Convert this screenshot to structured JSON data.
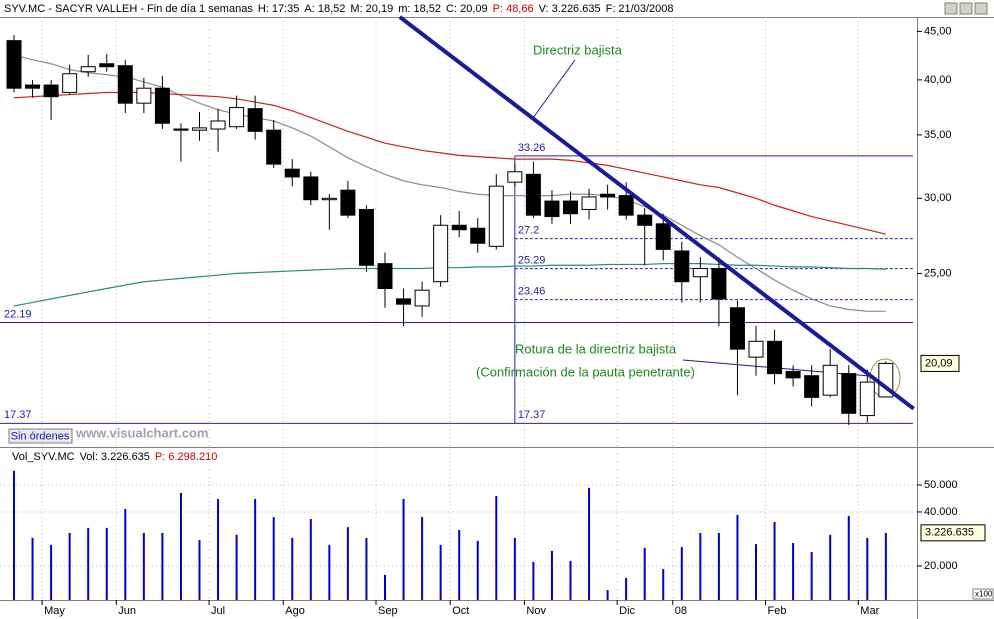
{
  "header": {
    "items": [
      {
        "text": "SYV.MC - SACYR VALLEH - Fin de día 1 semanas",
        "color": "#000000"
      },
      {
        "text": "H: 17:35",
        "color": "#000000"
      },
      {
        "text": "A: 18,52",
        "color": "#000000"
      },
      {
        "text": "M: 20,19",
        "color": "#000000"
      },
      {
        "text": "m: 18,52",
        "color": "#000000"
      },
      {
        "text": "C: 20,09",
        "color": "#000000"
      },
      {
        "text": "P: 48,66",
        "color": "#d00000"
      },
      {
        "text": "V: 3.226.635",
        "color": "#000000"
      },
      {
        "text": "F: 21/03/2008",
        "color": "#000000"
      }
    ]
  },
  "volume_header": {
    "items": [
      {
        "text": "Vol_SYV.MC",
        "color": "#000000"
      },
      {
        "text": "Vol: 3.226.635",
        "color": "#000000"
      },
      {
        "text": "P: 6.298.210",
        "color": "#d00000"
      }
    ]
  },
  "button": "Sin órdenes",
  "watermark": "www.visualchart.com",
  "annotations": [
    "Directriz bajista",
    "Rotura de la directriz bajista",
    "(Confirmación de la pauta penetrante)"
  ],
  "chart_data": [
    {
      "type": "candlestick",
      "log_scale": true,
      "up_color": "#ffffff",
      "down_color": "#000000",
      "open": [
        44.0,
        39.5,
        39.5,
        38.8,
        40.8,
        41.6,
        41.4,
        37.8,
        39.2,
        35.5,
        35.4,
        35.5,
        35.7,
        37.3,
        35.4,
        32.2,
        31.6,
        29.9,
        30.6,
        29.2,
        25.6,
        23.5,
        23.1,
        24.5,
        28.1,
        27.9,
        26.7,
        31.2,
        31.8,
        29.8,
        29.8,
        29.2,
        30.3,
        30.2,
        28.8,
        28.2,
        26.4,
        24.8,
        25.3,
        23.0,
        20.4,
        21.2,
        19.7,
        19.5,
        18.6,
        19.6,
        17.7,
        18.52
      ],
      "high": [
        44.6,
        40.0,
        40.0,
        41.5,
        42.5,
        42.6,
        42.0,
        40.2,
        40.4,
        36.0,
        37.0,
        37.3,
        38.5,
        38.5,
        36.3,
        33.0,
        32.0,
        30.3,
        31.3,
        29.5,
        26.3,
        24.1,
        24.5,
        28.8,
        29.1,
        28.6,
        31.8,
        32.6,
        32.8,
        30.6,
        30.5,
        30.7,
        31.0,
        31.2,
        29.3,
        28.9,
        27.0,
        26.0,
        26.0,
        23.4,
        22.0,
        21.8,
        20.0,
        20.0,
        20.8,
        20.0,
        19.8,
        20.19
      ],
      "low": [
        38.8,
        38.3,
        36.3,
        38.6,
        40.3,
        40.8,
        36.9,
        36.9,
        35.5,
        32.8,
        34.5,
        33.6,
        35.5,
        34.6,
        32.3,
        30.9,
        29.5,
        27.8,
        28.6,
        25.1,
        23.0,
        22.0,
        22.5,
        24.2,
        27.3,
        26.3,
        26.5,
        30.9,
        28.6,
        28.2,
        28.2,
        28.5,
        29.2,
        28.5,
        25.5,
        25.8,
        23.3,
        23.3,
        22.0,
        18.6,
        19.5,
        19.1,
        19.0,
        18.1,
        18.5,
        17.3,
        17.4,
        18.52
      ],
      "close": [
        39.2,
        39.2,
        38.4,
        40.6,
        41.3,
        41.3,
        37.8,
        39.2,
        36.0,
        35.4,
        35.6,
        36.2,
        37.4,
        35.3,
        32.6,
        31.6,
        29.9,
        30.0,
        28.8,
        25.5,
        24.1,
        23.2,
        24.0,
        28.1,
        27.8,
        26.9,
        30.9,
        32.0,
        28.8,
        28.7,
        28.9,
        30.1,
        30.1,
        28.8,
        28.1,
        26.5,
        24.5,
        25.3,
        23.5,
        20.8,
        21.2,
        19.6,
        19.4,
        18.5,
        20.0,
        17.8,
        19.2,
        20.09
      ],
      "last_label": "20,09",
      "overlays": [
        {
          "color": "#8c8c8c",
          "values": [
            42.5,
            42.0,
            41.6,
            41.0,
            40.7,
            40.5,
            40.3,
            39.8,
            39.3,
            38.5,
            37.8,
            37.2,
            36.8,
            36.5,
            36.2,
            35.6,
            34.9,
            34.0,
            33.1,
            32.4,
            31.8,
            31.3,
            31.0,
            30.8,
            30.5,
            30.3,
            30.2,
            30.2,
            30.2,
            30.2,
            30.3,
            30.3,
            30.2,
            29.9,
            29.4,
            28.8,
            28.1,
            27.4,
            26.8,
            26.0,
            25.3,
            24.6,
            24.0,
            23.5,
            23.1,
            22.9,
            22.8,
            22.8
          ]
        },
        {
          "color": "#cc2020",
          "values": [
            38.3,
            38.4,
            38.5,
            38.6,
            38.7,
            38.8,
            38.8,
            38.8,
            38.7,
            38.6,
            38.5,
            38.4,
            38.2,
            37.9,
            37.6,
            37.1,
            36.5,
            35.9,
            35.3,
            34.8,
            34.3,
            34.0,
            33.7,
            33.5,
            33.3,
            33.2,
            33.1,
            33.0,
            33.0,
            33.0,
            32.9,
            32.7,
            32.5,
            32.2,
            31.9,
            31.6,
            31.3,
            31.0,
            30.8,
            30.4,
            30.0,
            29.5,
            29.1,
            28.7,
            28.4,
            28.1,
            27.8,
            27.5
          ]
        },
        {
          "color": "#2a8a7a",
          "values": [
            23.1,
            23.3,
            23.5,
            23.7,
            23.9,
            24.1,
            24.3,
            24.5,
            24.6,
            24.7,
            24.8,
            24.9,
            25.0,
            25.05,
            25.1,
            25.15,
            25.2,
            25.25,
            25.3,
            25.3,
            25.3,
            25.3,
            25.3,
            25.35,
            25.35,
            25.4,
            25.4,
            25.45,
            25.45,
            25.5,
            25.5,
            25.5,
            25.55,
            25.55,
            25.55,
            25.6,
            25.6,
            25.6,
            25.55,
            25.5,
            25.5,
            25.45,
            25.4,
            25.4,
            25.35,
            25.3,
            25.3,
            25.25
          ]
        }
      ],
      "levels": [
        {
          "value": 33.26,
          "dashed": false,
          "full_width": false,
          "label_at": [
            "anchor"
          ]
        },
        {
          "value": 27.2,
          "dashed": true,
          "full_width": false,
          "label_at": [
            "anchor"
          ]
        },
        {
          "value": 25.29,
          "dashed": true,
          "full_width": false,
          "label_at": [
            "anchor"
          ]
        },
        {
          "value": 23.46,
          "dashed": true,
          "full_width": false,
          "label_at": [
            "anchor"
          ]
        },
        {
          "value": 22.19,
          "dashed": false,
          "full_width": true,
          "label_at": [
            "left"
          ]
        },
        {
          "value": 17.37,
          "dashed": false,
          "full_width": true,
          "label_at": [
            "left",
            "anchor"
          ]
        }
      ],
      "level_color": "#2020c0",
      "trendline": {
        "x": [
          20.8,
          48.5
        ],
        "values": [
          46.6,
          18.0
        ],
        "color": "#1a1a9a"
      },
      "ylim": [
        16.4,
        46.6
      ],
      "yticks": [
        {
          "value": 45,
          "label": "45,00"
        },
        {
          "value": 40,
          "label": "40,00"
        },
        {
          "value": 35,
          "label": "35,00"
        },
        {
          "value": 30,
          "label": "30,00"
        },
        {
          "value": 25,
          "label": "25,00"
        }
      ]
    },
    {
      "type": "bar",
      "color": "#0000cc",
      "categories": [
        null,
        null,
        "May",
        null,
        null,
        null,
        "Jun",
        null,
        null,
        null,
        null,
        "Jul",
        null,
        null,
        null,
        "Ago",
        null,
        null,
        null,
        null,
        "Sep",
        null,
        null,
        null,
        "Oct",
        null,
        null,
        null,
        "Nov",
        null,
        null,
        null,
        null,
        "Dic",
        null,
        null,
        "08",
        null,
        null,
        null,
        null,
        "Feb",
        null,
        null,
        null,
        null,
        "Mar",
        null
      ],
      "values": [
        55200,
        30400,
        27800,
        32200,
        34100,
        34100,
        41100,
        32200,
        32200,
        47000,
        29600,
        44800,
        31500,
        44800,
        38100,
        30400,
        37400,
        27800,
        34400,
        30400,
        16700,
        44800,
        38100,
        27800,
        33300,
        29300,
        45900,
        30400,
        21500,
        25600,
        21900,
        48900,
        11100,
        15600,
        26700,
        18900,
        27000,
        32200,
        32200,
        38900,
        28100,
        36300,
        28500,
        25200,
        31500,
        38500,
        30400,
        32266.35
      ],
      "last_label": "3.226.635",
      "unit_label": "x100",
      "grid": true,
      "ylim": [
        7400,
        62200
      ],
      "yticks": [
        {
          "value": 50000,
          "label": "50.000"
        },
        {
          "value": 40000,
          "label": "40.000"
        },
        {
          "value": 20000,
          "label": "20.000"
        }
      ]
    }
  ]
}
